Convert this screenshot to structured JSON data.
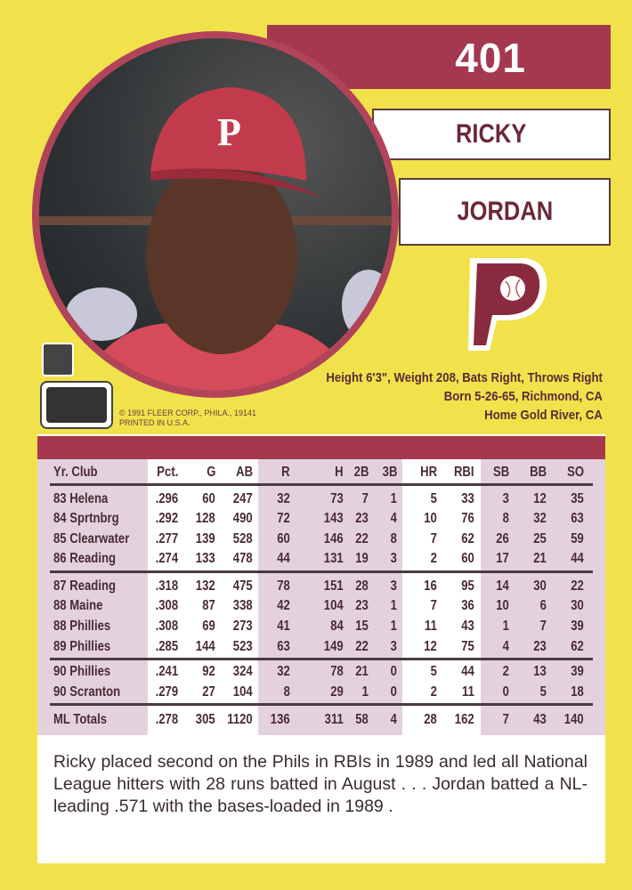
{
  "card": {
    "number": "401",
    "first_name": "RICKY",
    "last_name": "JORDAN",
    "team_logo": "phillies-p-logo",
    "colors": {
      "background": "#f1e24c",
      "accent": "#a4384f"
    }
  },
  "bio": {
    "line1": "Height 6'3\", Weight 208, Bats Right, Throws Right",
    "line2": "Born 5-26-65, Richmond, CA",
    "line3": "Home Gold River, CA"
  },
  "copyright": {
    "line1": "© 1991 FLEER CORP., PHILA., 19141",
    "line2": "PRINTED IN U.S.A."
  },
  "stats": {
    "headers": [
      "Yr. Club",
      "Pct.",
      "G",
      "AB",
      "R",
      "H",
      "2B",
      "3B",
      "HR",
      "RBI",
      "SB",
      "BB",
      "SO"
    ],
    "rows": [
      [
        "83 Helena",
        ".296",
        "60",
        "247",
        "32",
        "73",
        "7",
        "1",
        "5",
        "33",
        "3",
        "12",
        "35"
      ],
      [
        "84 Sprtnbrg",
        ".292",
        "128",
        "490",
        "72",
        "143",
        "23",
        "4",
        "10",
        "76",
        "8",
        "32",
        "63"
      ],
      [
        "85 Clearwater",
        ".277",
        "139",
        "528",
        "60",
        "146",
        "22",
        "8",
        "7",
        "62",
        "26",
        "25",
        "59"
      ],
      [
        "86 Reading",
        ".274",
        "133",
        "478",
        "44",
        "131",
        "19",
        "3",
        "2",
        "60",
        "17",
        "21",
        "44"
      ],
      [
        "87 Reading",
        ".318",
        "132",
        "475",
        "78",
        "151",
        "28",
        "3",
        "16",
        "95",
        "14",
        "30",
        "22"
      ],
      [
        "88 Maine",
        ".308",
        "87",
        "338",
        "42",
        "104",
        "23",
        "1",
        "7",
        "36",
        "10",
        "6",
        "30"
      ],
      [
        "88 Phillies",
        ".308",
        "69",
        "273",
        "41",
        "84",
        "15",
        "1",
        "11",
        "43",
        "1",
        "7",
        "39"
      ],
      [
        "89 Phillies",
        ".285",
        "144",
        "523",
        "63",
        "149",
        "22",
        "3",
        "12",
        "75",
        "4",
        "23",
        "62"
      ],
      [
        "90 Phillies",
        ".241",
        "92",
        "324",
        "32",
        "78",
        "21",
        "0",
        "5",
        "44",
        "2",
        "13",
        "39"
      ],
      [
        "90 Scranton",
        ".279",
        "27",
        "104",
        "8",
        "29",
        "1",
        "0",
        "2",
        "11",
        "0",
        "5",
        "18"
      ],
      [
        "ML Totals",
        ".278",
        "305",
        "1120",
        "136",
        "311",
        "58",
        "4",
        "28",
        "162",
        "7",
        "43",
        "140"
      ]
    ]
  },
  "blurb": "Ricky placed second on the Phils in RBIs in 1989 and led all National League hitters with 28 runs batted in August . . . Jordan batted a NL-leading .571 with the bases-loaded in 1989 ."
}
